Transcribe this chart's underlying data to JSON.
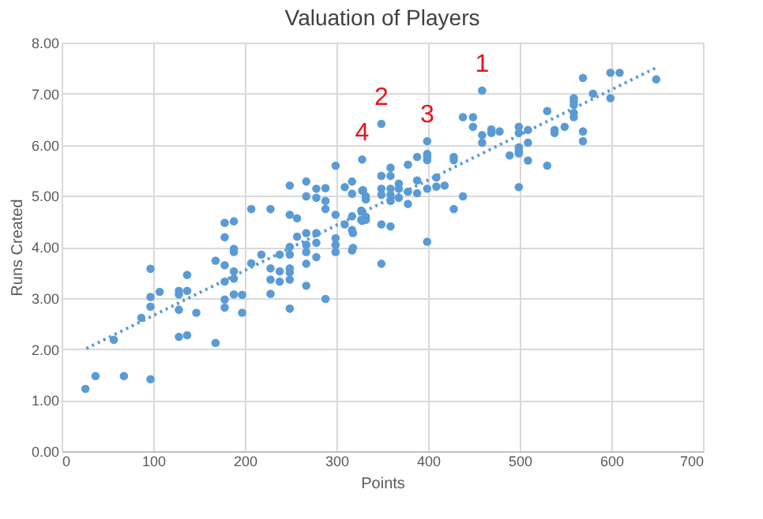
{
  "chart_data": {
    "type": "scatter",
    "title": "Valuation of Players",
    "xlabel": "Points",
    "ylabel": "Runs Created",
    "xlim": [
      0,
      700
    ],
    "xticks": [
      0,
      100,
      200,
      300,
      400,
      500,
      600,
      700
    ],
    "ylim": [
      0,
      8
    ],
    "yticks": [
      {
        "value": 0,
        "label": "0.00"
      },
      {
        "value": 1,
        "label": "1.00"
      },
      {
        "value": 2,
        "label": "2.00"
      },
      {
        "value": 3,
        "label": "3.00"
      },
      {
        "value": 4,
        "label": "4.00"
      },
      {
        "value": 5,
        "label": "5.00"
      },
      {
        "value": 6,
        "label": "6.00"
      },
      {
        "value": 7,
        "label": "7.00"
      },
      {
        "value": 8,
        "label": "8.00"
      }
    ],
    "grid": true,
    "series": [
      {
        "marker": "circle",
        "color": "#5b9bd5",
        "x": [
          26,
          37,
          68,
          97,
          57,
          87,
          97,
          97,
          97,
          107,
          128,
          128,
          128,
          128,
          137,
          137,
          137,
          147,
          168,
          168,
          178,
          178,
          178,
          178,
          188,
          188,
          188,
          188,
          197,
          197,
          207,
          228,
          228,
          228,
          238,
          238,
          249,
          249,
          249,
          249,
          267,
          267,
          278,
          288,
          299,
          178,
          178,
          188,
          188,
          207,
          218,
          228,
          238,
          249,
          249,
          249,
          249,
          257,
          257,
          267,
          267,
          267,
          267,
          267,
          278,
          278,
          278,
          278,
          288,
          288,
          288,
          299,
          299,
          299,
          299,
          309,
          309,
          317,
          317,
          317,
          317,
          317,
          328,
          328,
          328,
          328,
          349,
          399,
          459,
          438,
          449,
          449,
          459,
          459,
          469,
          469,
          478,
          499,
          499,
          509,
          509,
          499,
          499,
          499,
          489,
          509,
          530,
          530,
          538,
          538,
          549,
          559,
          559,
          559,
          559,
          559,
          569,
          569,
          569,
          580,
          599,
          609,
          599,
          649,
          499,
          438,
          428,
          399,
          428,
          428,
          399,
          399,
          399,
          388,
          378,
          359,
          359,
          349,
          329,
          349,
          359,
          368,
          368,
          378,
          388,
          388,
          399,
          409,
          409,
          418,
          332,
          332,
          349,
          359,
          359,
          368,
          378,
          327,
          327,
          332,
          332,
          349,
          359,
          349,
          318,
          318
        ],
        "values": [
          1.22,
          1.47,
          1.47,
          1.41,
          2.18,
          2.61,
          2.83,
          3.02,
          3.57,
          3.12,
          2.77,
          3.07,
          3.14,
          2.24,
          2.27,
          3.14,
          3.45,
          2.71,
          2.12,
          3.73,
          2.97,
          2.81,
          3.32,
          3.64,
          3.07,
          3.38,
          3.52,
          3.9,
          3.06,
          2.71,
          3.68,
          3.08,
          3.36,
          3.58,
          3.32,
          3.52,
          2.79,
          3.36,
          3.5,
          3.58,
          3.24,
          3.67,
          3.8,
          2.98,
          3.9,
          4.19,
          4.47,
          4.5,
          3.96,
          4.74,
          3.85,
          4.74,
          3.85,
          5.2,
          4.63,
          4.0,
          3.85,
          4.56,
          4.2,
          5.28,
          4.99,
          4.27,
          4.04,
          3.9,
          5.14,
          4.96,
          4.27,
          4.08,
          5.15,
          4.9,
          4.74,
          5.59,
          4.63,
          4.17,
          4.04,
          5.17,
          4.44,
          5.28,
          5.04,
          4.6,
          4.33,
          3.93,
          5.71,
          5.1,
          4.69,
          4.51,
          6.41,
          6.07,
          7.06,
          6.54,
          6.54,
          6.35,
          6.19,
          6.04,
          6.3,
          6.23,
          6.26,
          6.35,
          6.23,
          6.29,
          6.04,
          5.95,
          5.88,
          5.83,
          5.79,
          5.69,
          6.66,
          5.59,
          6.29,
          6.23,
          6.35,
          6.91,
          6.85,
          6.78,
          6.62,
          6.54,
          7.31,
          6.26,
          6.07,
          7.0,
          7.41,
          7.41,
          6.91,
          7.28,
          5.17,
          4.99,
          4.74,
          4.1,
          5.76,
          5.7,
          5.82,
          5.76,
          5.7,
          5.76,
          5.61,
          5.55,
          5.39,
          5.39,
          5.11,
          5.14,
          5.14,
          5.24,
          5.14,
          5.08,
          5.3,
          5.05,
          5.14,
          5.36,
          5.18,
          5.2,
          4.99,
          4.93,
          5.02,
          5.02,
          4.9,
          4.96,
          4.84,
          4.71,
          4.53,
          4.59,
          4.53,
          4.44,
          4.4,
          3.67,
          4.27,
          3.98
        ]
      },
      {
        "type": "line",
        "marker": "none",
        "line_style": "dotted",
        "color": "#5b9bd5",
        "x": [
          27,
          649
        ],
        "values": [
          2.01,
          7.51
        ]
      }
    ],
    "annotations": [
      {
        "text": "4",
        "x": 328,
        "y": 5.71
      },
      {
        "text": "2",
        "x": 349,
        "y": 6.41
      },
      {
        "text": "3",
        "x": 399,
        "y": 6.07
      },
      {
        "text": "1",
        "x": 459,
        "y": 7.06
      }
    ]
  }
}
